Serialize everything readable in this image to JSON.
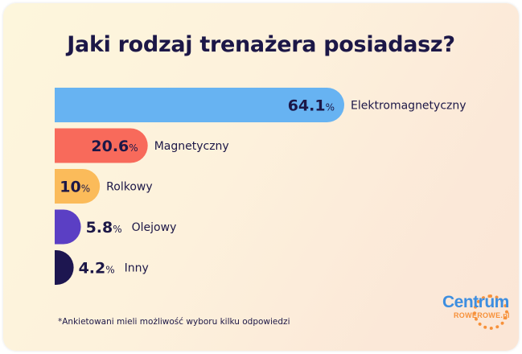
{
  "chart_data": {
    "type": "bar",
    "orientation": "horizontal",
    "title": "Jaki rodzaj trenażera posiadasz?",
    "categories": [
      "Elektromagnetyczny",
      "Magnetyczny",
      "Rolkowy",
      "Olejowy",
      "Inny"
    ],
    "values": [
      64.1,
      20.6,
      10,
      5.8,
      4.2
    ],
    "value_labels": [
      "64.1",
      "20.6",
      "10",
      "5.8",
      "4.2"
    ],
    "unit": "%",
    "colors": [
      "#67b3f2",
      "#f86a5b",
      "#fbbb5a",
      "#5b3fc4",
      "#1d1650"
    ],
    "xlim": [
      0,
      64.1
    ],
    "xlabel": "",
    "ylabel": "",
    "grid": false,
    "legend": "none"
  },
  "footnote": "*Ankietowani mieli możliwość wyboru kilku odpowiedzi",
  "logo": {
    "main_text": "Centrum",
    "sub_text": "ROWEROWE.pl"
  }
}
